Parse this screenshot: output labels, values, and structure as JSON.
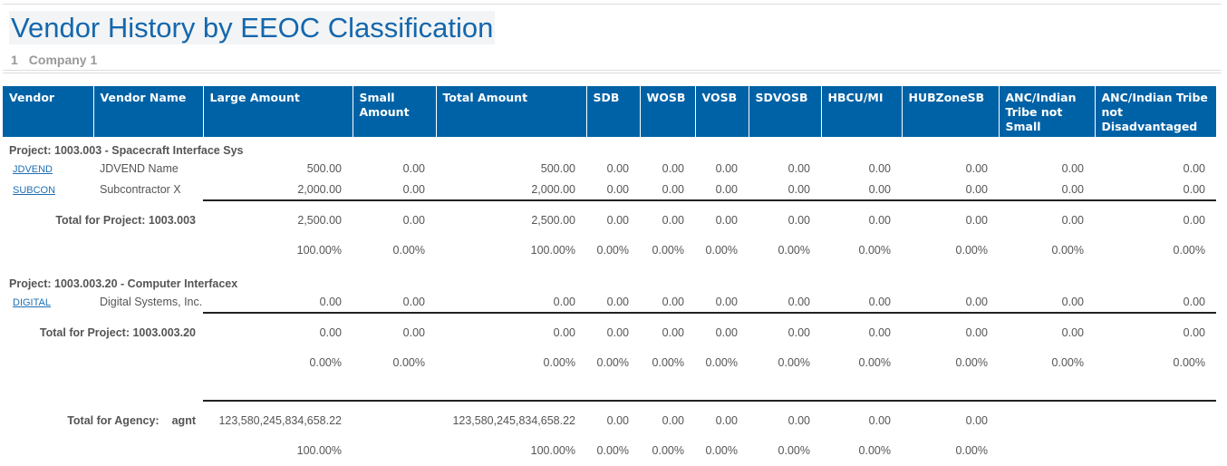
{
  "header": {
    "title": "Vendor History by EEOC Classification",
    "company_number": "1",
    "company_name": "Company 1"
  },
  "table": {
    "columns": [
      "Vendor",
      "Vendor Name",
      "Large Amount",
      "Small Amount",
      "Total Amount",
      "SDB",
      "WOSB",
      "VOSB",
      "SDVOSB",
      "HBCU/MI",
      "HUBZoneSB",
      "ANC/Indian Tribe not Small",
      "ANC/Indian Tribe not Disadvantaged"
    ],
    "projects": [
      {
        "label": "Project: 1003.003 - Spacecraft Interface Sys",
        "rows": [
          [
            "JDVEND",
            "JDVEND Name",
            "500.00",
            "0.00",
            "500.00",
            "0.00",
            "0.00",
            "0.00",
            "0.00",
            "0.00",
            "0.00",
            "0.00",
            "0.00"
          ],
          [
            "SUBCON",
            "Subcontractor X",
            "2,000.00",
            "0.00",
            "2,000.00",
            "0.00",
            "0.00",
            "0.00",
            "0.00",
            "0.00",
            "0.00",
            "0.00",
            "0.00"
          ]
        ],
        "total_label": "Total for Project: 1003.003",
        "totals": [
          "2,500.00",
          "0.00",
          "2,500.00",
          "0.00",
          "0.00",
          "0.00",
          "0.00",
          "0.00",
          "0.00",
          "0.00",
          "0.00"
        ],
        "percents": [
          "100.00%",
          "0.00%",
          "100.00%",
          "0.00%",
          "0.00%",
          "0.00%",
          "0.00%",
          "0.00%",
          "0.00%",
          "0.00%",
          "0.00%"
        ]
      },
      {
        "label": "Project: 1003.003.20 - Computer Interfacex",
        "rows": [
          [
            "DIGITAL",
            "Digital Systems, Inc.",
            "0.00",
            "0.00",
            "0.00",
            "0.00",
            "0.00",
            "0.00",
            "0.00",
            "0.00",
            "0.00",
            "0.00",
            "0.00"
          ]
        ],
        "total_label": "Total for Project: 1003.003.20",
        "totals": [
          "0.00",
          "0.00",
          "0.00",
          "0.00",
          "0.00",
          "0.00",
          "0.00",
          "0.00",
          "0.00",
          "0.00",
          "0.00"
        ],
        "percents": [
          "0.00%",
          "0.00%",
          "0.00%",
          "0.00%",
          "0.00%",
          "0.00%",
          "0.00%",
          "0.00%",
          "0.00%",
          "0.00%",
          "0.00%"
        ]
      }
    ],
    "agency": {
      "label": "Total for Agency:",
      "code": "agnt",
      "totals": [
        "123,580,245,834,658.22",
        null,
        "123,580,245,834,658.22",
        "0.00",
        "0.00",
        "0.00",
        "0.00",
        "0.00",
        "0.00",
        null,
        null
      ],
      "percents": [
        "100.00%",
        null,
        "100.00%",
        "0.00%",
        "0.00%",
        "0.00%",
        "0.00%",
        "0.00%",
        "0.00%",
        null,
        null
      ]
    }
  }
}
